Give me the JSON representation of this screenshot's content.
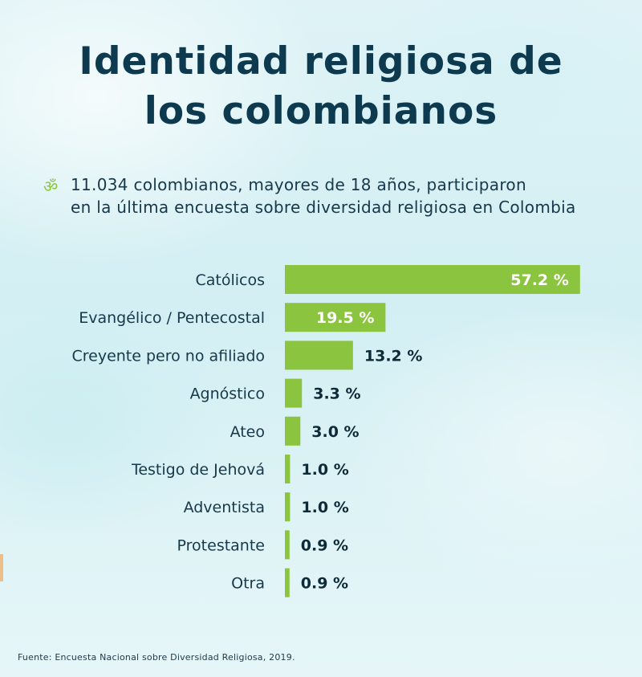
{
  "title_lines": [
    "Identidad religiosa de",
    "los colombianos"
  ],
  "intro": {
    "icon": "om-icon",
    "lines": [
      "11.034 colombianos, mayores de 18 años, participaron",
      "en la última encuesta sobre diversidad religiosa en Colombia"
    ]
  },
  "source": "Fuente: Encuesta Nacional sobre Diversidad Religiosa, 2019.",
  "colors": {
    "bar": "#8bc53f",
    "title": "#0d3a4f",
    "text": "#16384a"
  },
  "chart_data": {
    "type": "bar",
    "orientation": "horizontal",
    "categories": [
      "Católicos",
      "Evangélico / Pentecostal",
      "Creyente pero no afiliado",
      "Agnóstico",
      "Ateo",
      "Testigo de Jehová",
      "Adventista",
      "Protestante",
      "Otra"
    ],
    "values": [
      57.2,
      19.5,
      13.2,
      3.3,
      3.0,
      1.0,
      1.0,
      0.9,
      0.9
    ],
    "value_labels": [
      "57.2 %",
      "19.5 %",
      "13.2 %",
      "3.3 %",
      "3.0 %",
      "1.0 %",
      "1.0 %",
      "0.9 %",
      "0.9 %"
    ],
    "unit": "%",
    "grid": false
  }
}
